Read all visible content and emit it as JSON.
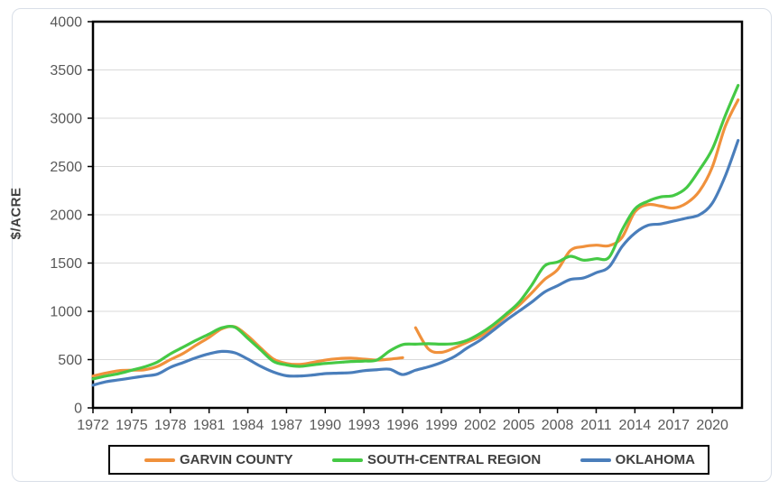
{
  "colors": {
    "background": "#FFFFFF",
    "frame_border": "#D9DFE8",
    "gridline": "#D9D9D9",
    "plot_border": "#000000",
    "tick_label": "#595959",
    "axis_title": "#3F3F3F",
    "legend_text": "#3F3F3F",
    "legend_border": "#000000"
  },
  "chart_data": {
    "type": "line",
    "title": "",
    "xlabel": "",
    "ylabel": "$/ACRE",
    "xlim": [
      1972,
      2022.3
    ],
    "ylim": [
      0,
      4000
    ],
    "y_tick_step": 500,
    "y_tick_labels": [
      "0",
      "500",
      "1000",
      "1500",
      "2000",
      "2500",
      "3000",
      "3500",
      "4000"
    ],
    "x_tick_years": [
      1972,
      1975,
      1978,
      1981,
      1984,
      1987,
      1990,
      1993,
      1996,
      1999,
      2002,
      2005,
      2008,
      2011,
      2014,
      2017,
      2020
    ],
    "grid": "horizontal",
    "legend_position": "bottom-center",
    "x": [
      1972,
      1973,
      1974,
      1975,
      1976,
      1977,
      1978,
      1979,
      1980,
      1981,
      1982,
      1983,
      1984,
      1985,
      1986,
      1987,
      1988,
      1989,
      1990,
      1991,
      1992,
      1993,
      1994,
      1995,
      1996,
      1997,
      1998,
      1999,
      2000,
      2001,
      2002,
      2003,
      2004,
      2005,
      2006,
      2007,
      2008,
      2009,
      2010,
      2011,
      2012,
      2013,
      2014,
      2015,
      2016,
      2017,
      2018,
      2019,
      2020,
      2021,
      2022
    ],
    "series": [
      {
        "name": "GARVIN COUNTY",
        "color": "#F0913C",
        "gap_after_year": 1996,
        "values": [
          330,
          360,
          385,
          390,
          395,
          430,
          500,
          565,
          650,
          730,
          820,
          840,
          745,
          620,
          505,
          460,
          450,
          470,
          495,
          510,
          515,
          505,
          495,
          505,
          520,
          830,
          610,
          575,
          620,
          680,
          740,
          835,
          950,
          1060,
          1190,
          1330,
          1430,
          1630,
          1670,
          1685,
          1680,
          1765,
          2030,
          2105,
          2090,
          2070,
          2120,
          2245,
          2495,
          2915,
          3190
        ]
      },
      {
        "name": "SOUTH-CENTRAL REGION",
        "color": "#45C945",
        "values": [
          300,
          330,
          355,
          390,
          425,
          475,
          560,
          630,
          700,
          765,
          830,
          835,
          720,
          600,
          480,
          445,
          430,
          445,
          460,
          470,
          480,
          485,
          495,
          590,
          655,
          660,
          665,
          660,
          665,
          700,
          770,
          860,
          970,
          1090,
          1270,
          1470,
          1510,
          1570,
          1530,
          1545,
          1560,
          1840,
          2060,
          2140,
          2185,
          2200,
          2280,
          2465,
          2680,
          3025,
          3340
        ]
      },
      {
        "name": "OKLAHOMA",
        "color": "#4A7EBB",
        "values": [
          235,
          270,
          290,
          310,
          330,
          350,
          420,
          470,
          520,
          560,
          585,
          570,
          505,
          430,
          370,
          333,
          330,
          340,
          355,
          360,
          365,
          385,
          395,
          400,
          345,
          390,
          425,
          470,
          530,
          620,
          700,
          800,
          905,
          1000,
          1095,
          1200,
          1265,
          1330,
          1345,
          1400,
          1460,
          1670,
          1810,
          1890,
          1905,
          1935,
          1965,
          2000,
          2120,
          2400,
          2770
        ]
      }
    ]
  }
}
